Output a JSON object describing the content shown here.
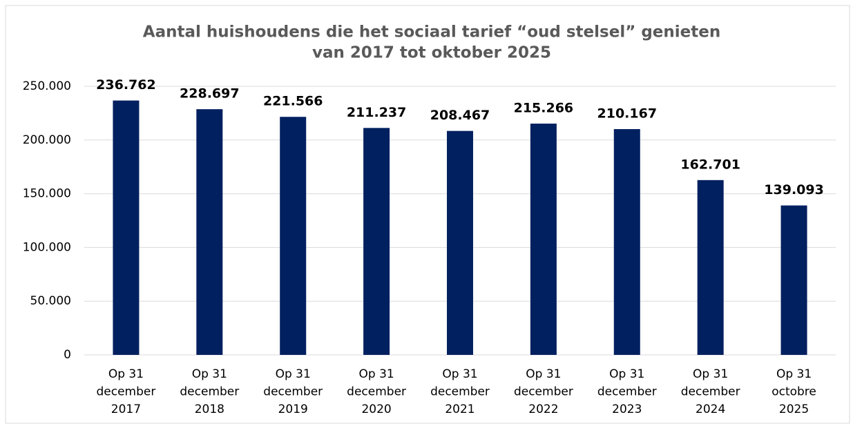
{
  "chart_data": {
    "type": "bar",
    "title": [
      "Aantal huishoudens die het sociaal tarief “oud stelsel” genieten",
      "van 2017 tot oktober 2025"
    ],
    "categories": [
      [
        "Op 31",
        "december",
        "2017"
      ],
      [
        "Op 31",
        "december",
        "2018"
      ],
      [
        "Op 31",
        "december",
        "2019"
      ],
      [
        "Op 31",
        "december",
        "2020"
      ],
      [
        "Op 31",
        "december",
        "2021"
      ],
      [
        "Op 31",
        "december",
        "2022"
      ],
      [
        "Op 31",
        "december",
        "2023"
      ],
      [
        "Op 31",
        "december",
        "2024"
      ],
      [
        "Op 31",
        "octobre",
        "2025"
      ]
    ],
    "values": [
      236762,
      228697,
      221566,
      211237,
      208467,
      215266,
      210167,
      162701,
      139093
    ],
    "value_labels": [
      "236.762",
      "228.697",
      "221.566",
      "211.237",
      "208.467",
      "215.266",
      "210.167",
      "162.701",
      "139.093"
    ],
    "color": "#002060",
    "ylim": [
      0,
      250000
    ],
    "yticks": [
      0,
      {
        "value": 50000,
        "label": "50.000"
      },
      {
        "value": 100000,
        "label": "100.000"
      },
      {
        "value": 150000,
        "label": "150.000"
      },
      {
        "value": 200000,
        "label": "200.000"
      },
      {
        "value": 250000,
        "label": "250.000"
      }
    ],
    "grid": true
  }
}
